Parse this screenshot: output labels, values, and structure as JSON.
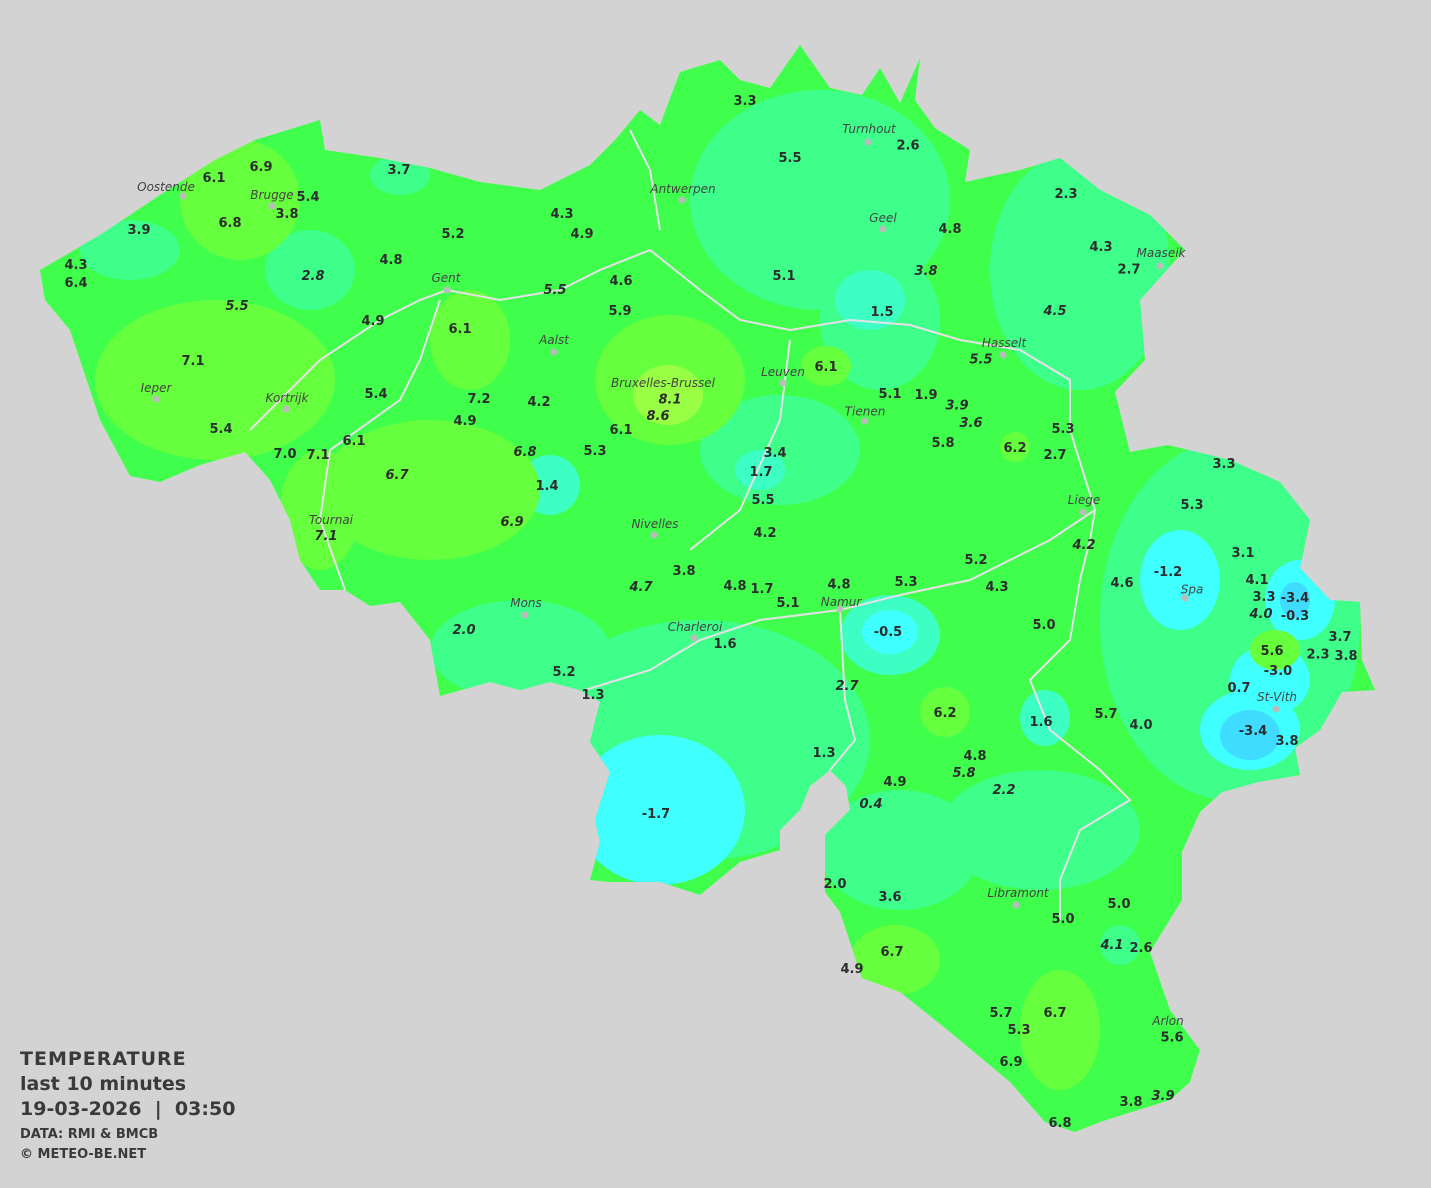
{
  "map": {
    "title": "TEMPERATURE",
    "period": "last 10 minutes",
    "datetime": "19-03-2026  |  03:50",
    "source": "DATA: RMI & BMCB",
    "copyright": "© METEO-BE.NET",
    "colors": {
      "background": "#d3d3d3",
      "very_cold": "#3fdcff",
      "cold": "#40ffff",
      "cool": "#3dffc4",
      "mild": "#3dff8a",
      "base": "#3fff4c",
      "warm": "#66ff3d",
      "warmer": "#99ff44"
    },
    "cities": [
      "Turnhout",
      "Antwerpen",
      "Geel",
      "Brugge",
      "Oostende",
      "Maaseik",
      "Gent",
      "Aalst",
      "Hasselt",
      "Leuven",
      "Ieper",
      "Kortrijk",
      "Bruxelles-Brussel",
      "Tienen",
      "Liege",
      "Tournai",
      "Nivelles",
      "Spa",
      "Mons",
      "Namur",
      "Charleroi",
      "St-Vith",
      "Libramont",
      "Arlon"
    ],
    "readings": [
      "3.3",
      "5.5",
      "2.6",
      "3.7",
      "6.9",
      "6.1",
      "5.4",
      "3.8",
      "3.9",
      "6.8",
      "4.3",
      "6.4",
      "4.3",
      "4.9",
      "5.2",
      "4.8",
      "2.8",
      "5.5",
      "4.9",
      "6.1",
      "5.5",
      "4.6",
      "5.9",
      "5.1",
      "2.3",
      "4.8",
      "4.3",
      "2.7",
      "3.8",
      "1.5",
      "4.5",
      "5.5",
      "7.1",
      "5.4",
      "7.2",
      "4.2",
      "8.1",
      "8.6",
      "6.1",
      "5.1",
      "1.9",
      "3.9",
      "3.6",
      "5.4",
      "4.9",
      "6.1",
      "7.0",
      "7.1",
      "6.8",
      "5.3",
      "6.1",
      "3.4",
      "1.7",
      "5.8",
      "6.2",
      "5.3",
      "2.7",
      "6.7",
      "1.4",
      "5.5",
      "5.3",
      "3.3",
      "6.9",
      "7.1",
      "4.2",
      "4.2",
      "3.1",
      "5.2",
      "4.7",
      "3.8",
      "4.8",
      "1.7",
      "4.8",
      "5.3",
      "4.3",
      "4.6",
      "-1.2",
      "4.1",
      "3.3",
      "-3.4",
      "4.0",
      "-0.3",
      "5.1",
      "2.0",
      "-0.5",
      "5.0",
      "5.6",
      "2.3",
      "3.7",
      "3.8",
      "-3.0",
      "1.6",
      "5.2",
      "1.3",
      "2.7",
      "0.7",
      "6.2",
      "1.6",
      "5.7",
      "4.0",
      "-3.4",
      "3.8",
      "1.3",
      "4.8",
      "5.8",
      "4.9",
      "2.2",
      "0.4",
      "-1.7",
      "2.0",
      "3.6",
      "5.0",
      "5.0",
      "4.1",
      "2.6",
      "6.7",
      "4.9",
      "5.7",
      "5.3",
      "6.7",
      "5.6",
      "6.9",
      "3.8",
      "3.9",
      "6.8"
    ]
  }
}
